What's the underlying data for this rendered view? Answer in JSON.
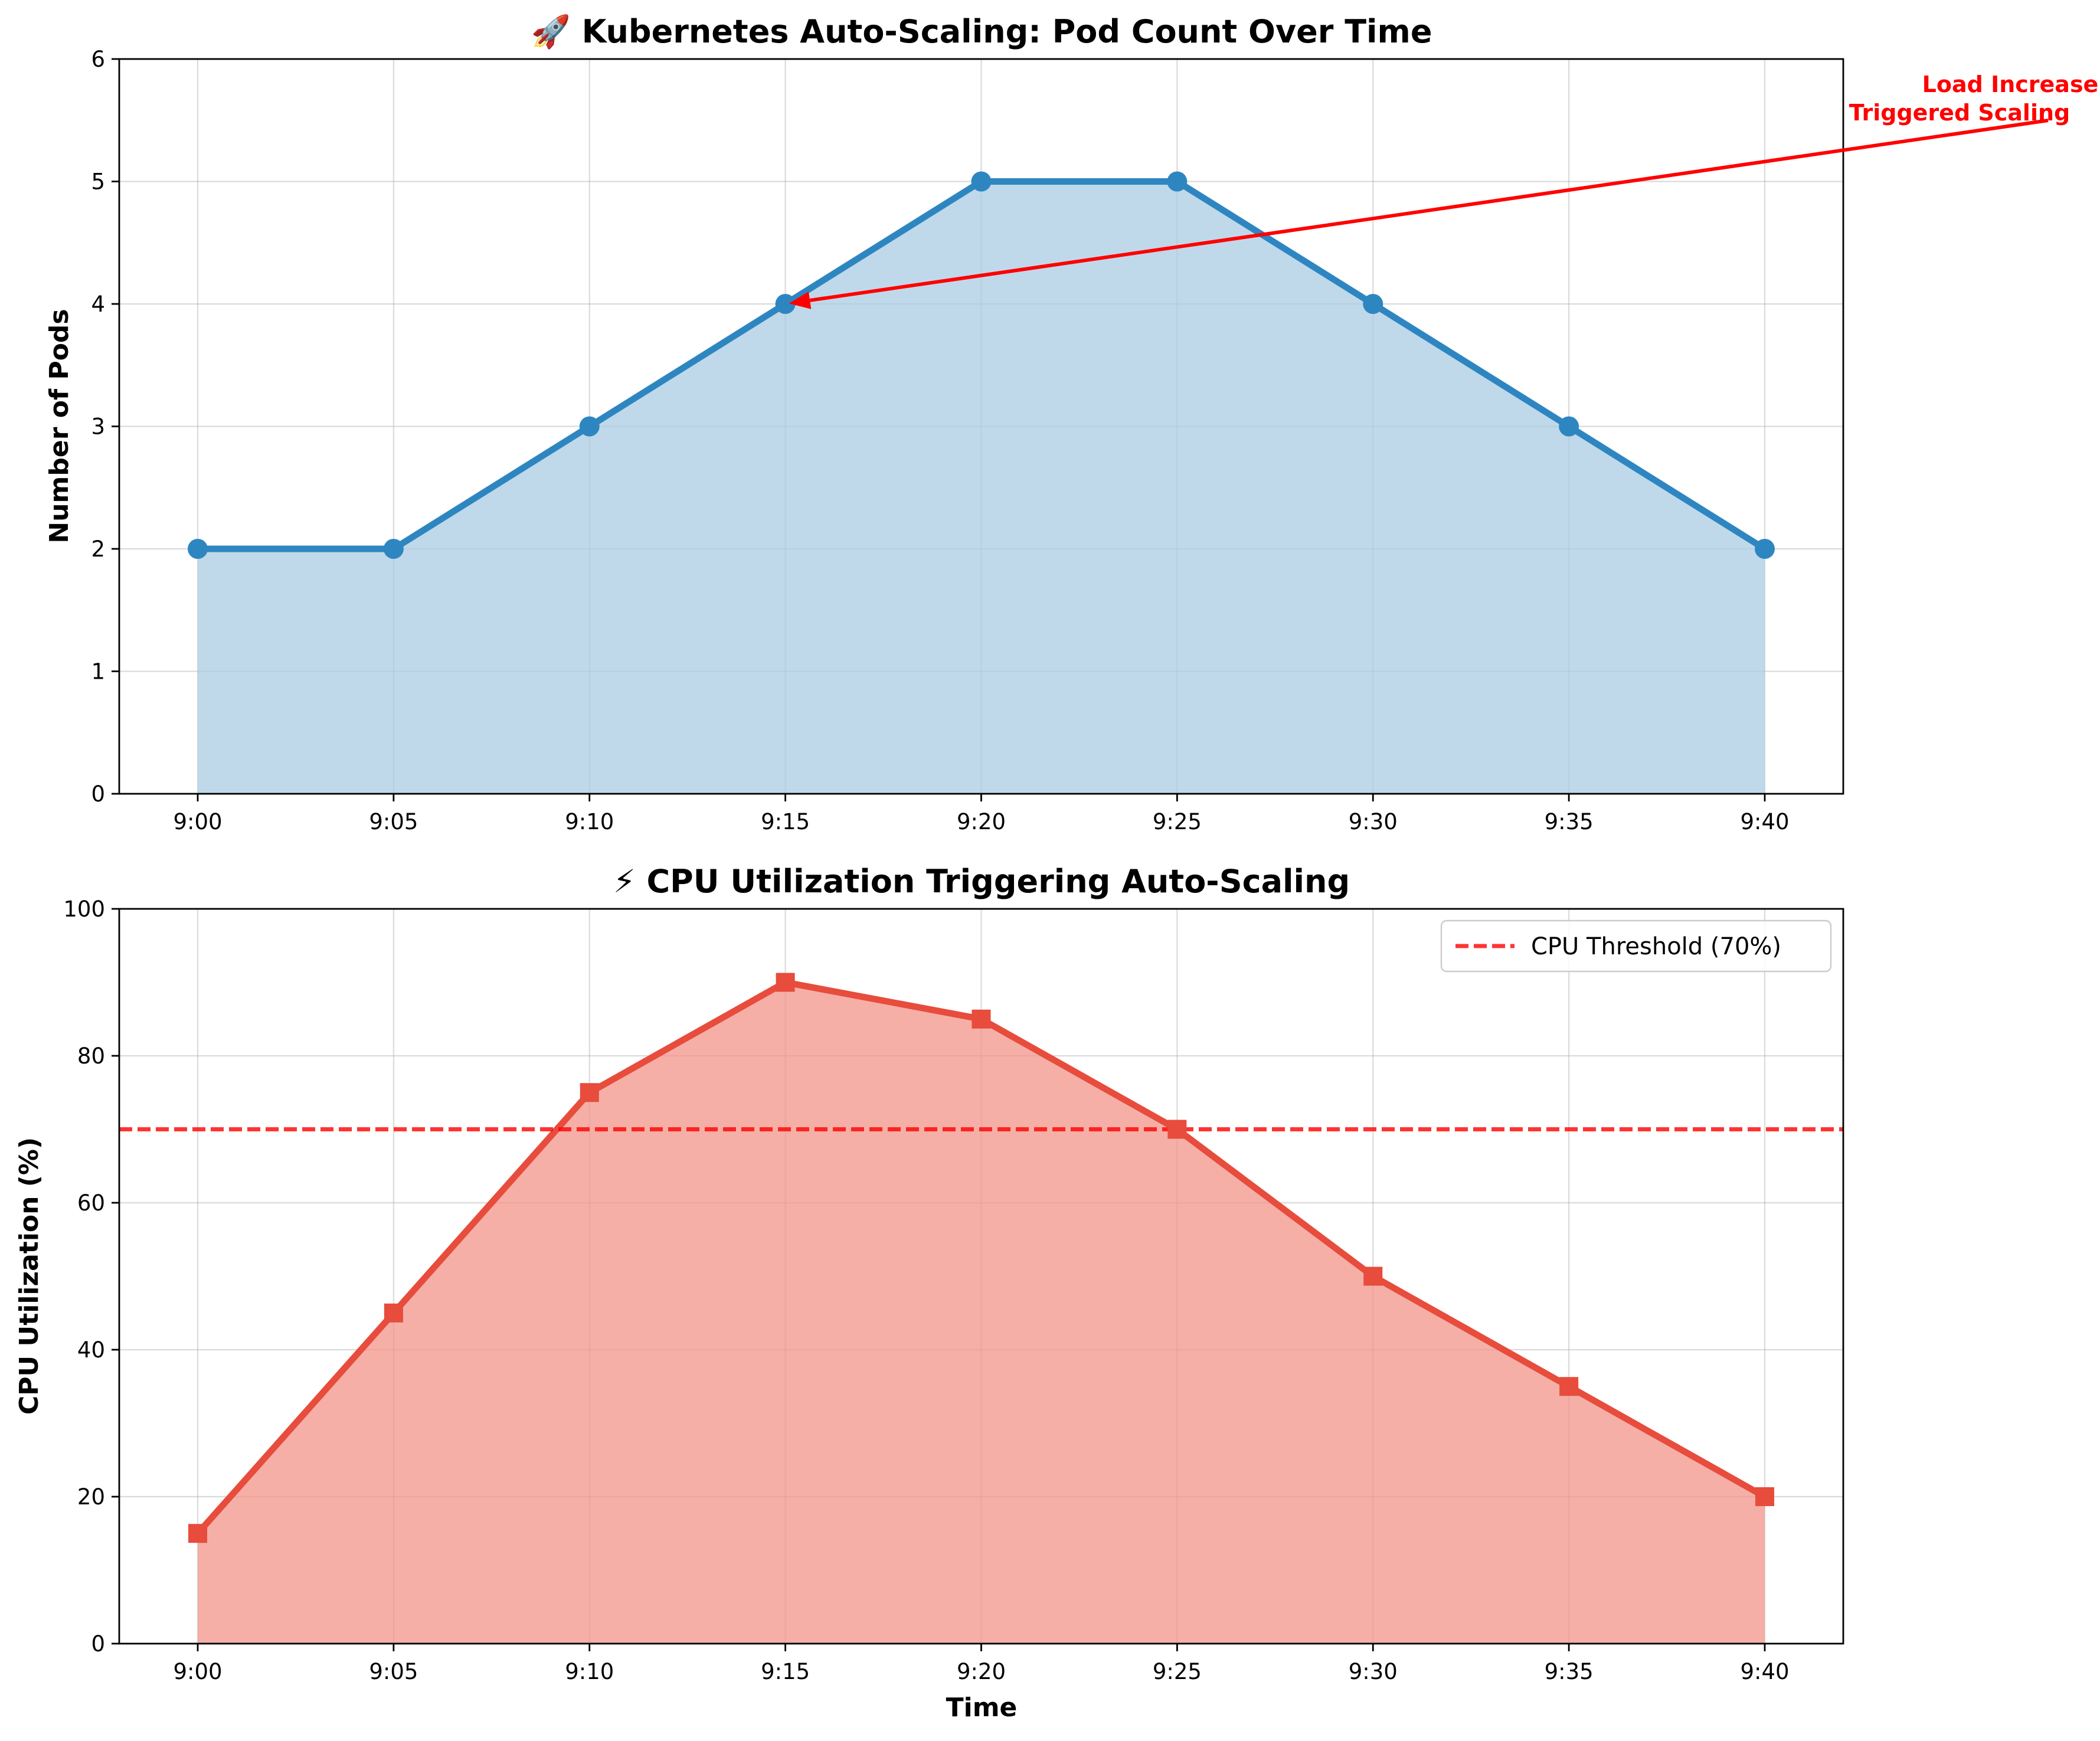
{
  "chart_data": [
    {
      "type": "line",
      "fill": "area",
      "title": "🚀 Kubernetes Auto-Scaling: Pod Count Over Time",
      "xlabel": "",
      "ylabel": "Number of Pods",
      "categories": [
        "9:00",
        "9:05",
        "9:10",
        "9:15",
        "9:20",
        "9:25",
        "9:30",
        "9:35",
        "9:40"
      ],
      "series": [
        {
          "name": "Pods",
          "values": [
            2,
            2,
            3,
            4,
            5,
            5,
            4,
            3,
            2
          ],
          "color": "#2e86c1",
          "fill_color": "#a9cce3",
          "marker": "circle"
        }
      ],
      "ylim": [
        0,
        6
      ],
      "yticks": [
        0,
        1,
        2,
        3,
        4,
        5,
        6
      ],
      "grid": true,
      "annotation": {
        "text_lines": [
          "Load Increase",
          "Triggered Scaling"
        ],
        "target_category": "9:15",
        "target_value": 4,
        "color": "#ff0000"
      }
    },
    {
      "type": "line",
      "fill": "area",
      "title": "⚡ CPU Utilization Triggering Auto-Scaling",
      "xlabel": "Time",
      "ylabel": "CPU Utilization (%)",
      "categories": [
        "9:00",
        "9:05",
        "9:10",
        "9:15",
        "9:20",
        "9:25",
        "9:30",
        "9:35",
        "9:40"
      ],
      "series": [
        {
          "name": "CPU Utilization",
          "values": [
            15,
            45,
            75,
            90,
            85,
            70,
            50,
            35,
            20
          ],
          "color": "#e74c3c",
          "fill_color": "#f1948a",
          "marker": "square"
        }
      ],
      "threshold": {
        "value": 70,
        "label": "CPU Threshold (70%)",
        "color": "#ff0000"
      },
      "ylim": [
        0,
        100
      ],
      "yticks": [
        0,
        20,
        40,
        60,
        80,
        100
      ],
      "grid": true,
      "legend": "top-right"
    }
  ]
}
